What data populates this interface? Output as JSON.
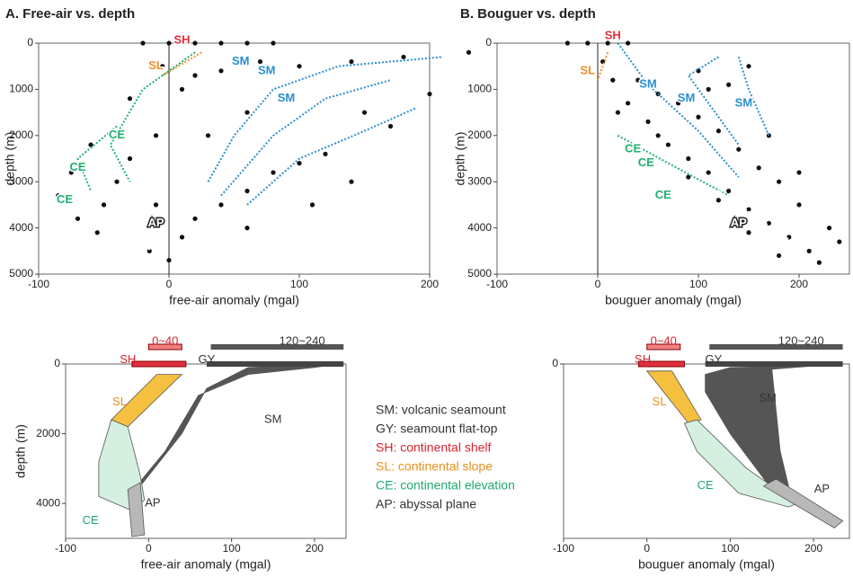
{
  "chart_data": [
    {
      "type": "scatter",
      "title": "A. Free-air vs. depth",
      "x_label": "free-air anomaly (mgal)",
      "y_label": "depth (m)",
      "xlim": [
        -100,
        200
      ],
      "ylim": [
        5000,
        0
      ],
      "xticks": [
        -100,
        0,
        100,
        200
      ],
      "yticks": [
        0,
        1000,
        2000,
        3000,
        4000,
        5000
      ],
      "color": "#111111",
      "x": [
        -20,
        0,
        20,
        40,
        60,
        80,
        -5,
        20,
        -30,
        10,
        40,
        70,
        100,
        140,
        180,
        230,
        -60,
        -75,
        -85,
        -70,
        -55,
        -40,
        -30,
        -10,
        -15,
        0,
        10,
        20,
        40,
        60,
        80,
        100,
        120,
        150,
        170,
        200,
        60,
        90,
        30,
        -10,
        110,
        140,
        60,
        -50
      ],
      "y": [
        0,
        0,
        0,
        0,
        0,
        0,
        500,
        700,
        1200,
        1000,
        600,
        400,
        500,
        400,
        300,
        200,
        2200,
        2800,
        3300,
        3800,
        4100,
        3000,
        2500,
        3500,
        4500,
        4700,
        4200,
        3800,
        3500,
        3200,
        2800,
        2600,
        2400,
        1500,
        1800,
        1100,
        1500,
        1200,
        2000,
        2000,
        3500,
        3000,
        4000,
        3500
      ],
      "annotations": [
        {
          "text": "SH",
          "color": "#e0303a"
        },
        {
          "text": "SL",
          "color": "#f0902a"
        },
        {
          "text": "SM",
          "color": "#2a8fd0"
        },
        {
          "text": "SM",
          "color": "#2a8fd0"
        },
        {
          "text": "SM",
          "color": "#2a8fd0"
        },
        {
          "text": "CE",
          "color": "#20b070"
        },
        {
          "text": "CE",
          "color": "#20b070"
        },
        {
          "text": "CE",
          "color": "#20b070"
        },
        {
          "text": "AP",
          "color": "#ffffff"
        }
      ]
    },
    {
      "type": "scatter",
      "title": "B. Bouguer vs. depth",
      "x_label": "bouguer anomaly (mgal)",
      "y_label": "depth (m)",
      "xlim": [
        -100,
        250
      ],
      "ylim": [
        5000,
        0
      ],
      "xticks": [
        -100,
        0,
        100,
        200
      ],
      "yticks": [
        0,
        1000,
        2000,
        3000,
        4000,
        5000
      ],
      "color": "#111111",
      "x": [
        -30,
        -10,
        10,
        30,
        5,
        15,
        30,
        50,
        70,
        90,
        110,
        130,
        150,
        170,
        190,
        210,
        220,
        40,
        60,
        80,
        100,
        120,
        140,
        160,
        180,
        200,
        230,
        240,
        100,
        130,
        150,
        60,
        90,
        120,
        150,
        180,
        110,
        170,
        200,
        20
      ],
      "y": [
        0,
        0,
        0,
        0,
        400,
        800,
        1300,
        1700,
        2200,
        2500,
        2800,
        3200,
        3600,
        3900,
        4200,
        4500,
        4750,
        800,
        1100,
        1300,
        1600,
        1900,
        2300,
        2700,
        3000,
        3500,
        4000,
        4300,
        600,
        900,
        500,
        2000,
        2900,
        3400,
        4100,
        4600,
        1000,
        2000,
        2800,
        1500
      ],
      "annotations": [
        {
          "text": "SH",
          "color": "#e0303a"
        },
        {
          "text": "SL",
          "color": "#f0902a"
        },
        {
          "text": "SM",
          "color": "#2a8fd0"
        },
        {
          "text": "SM",
          "color": "#2a8fd0"
        },
        {
          "text": "SM",
          "color": "#2a8fd0"
        },
        {
          "text": "CE",
          "color": "#20b070"
        },
        {
          "text": "CE",
          "color": "#20b070"
        },
        {
          "text": "CE",
          "color": "#20b070"
        },
        {
          "text": "AP",
          "color": "#ffffff"
        }
      ]
    },
    {
      "type": "schematic",
      "x_label": "free-air anomaly (mgal)",
      "y_label": "depth (m)",
      "xlim": [
        -100,
        238
      ],
      "ylim": [
        5000,
        0
      ],
      "xticks": [
        -100,
        0,
        100,
        200
      ],
      "yticks": [
        0,
        2000,
        4000
      ],
      "labels": [
        {
          "text": "0~40",
          "color": "#d9232e"
        },
        {
          "text": "120~240",
          "color": "#333333"
        },
        {
          "text": "SH",
          "color": "#d9232e"
        },
        {
          "text": "GY",
          "color": "#333333"
        },
        {
          "text": "SL",
          "color": "#e8901a"
        },
        {
          "text": "SM",
          "color": "#333333"
        },
        {
          "text": "CE",
          "color": "#1fa870"
        },
        {
          "text": "AP",
          "color": "#333333"
        }
      ]
    },
    {
      "type": "schematic",
      "x_label": "bouguer anomaly (mgal)",
      "xlim": [
        -100,
        243
      ],
      "ylim": [
        5000,
        0
      ],
      "xticks": [
        -100,
        0,
        100,
        200
      ],
      "yticks": [
        0
      ],
      "labels": [
        {
          "text": "0~40",
          "color": "#d9232e"
        },
        {
          "text": "120~240",
          "color": "#333333"
        },
        {
          "text": "SH",
          "color": "#d9232e"
        },
        {
          "text": "GY",
          "color": "#333333"
        },
        {
          "text": "SL",
          "color": "#e8901a"
        },
        {
          "text": "SM",
          "color": "#333333"
        },
        {
          "text": "CE",
          "color": "#1fa870"
        },
        {
          "text": "AP",
          "color": "#333333"
        }
      ]
    }
  ],
  "legend": [
    {
      "text": "SM: volcanic seamount",
      "color": "#333333"
    },
    {
      "text": "GY: seamount flat-top",
      "color": "#333333"
    },
    {
      "text": "SH: continental shelf",
      "color": "#d9232e"
    },
    {
      "text": "SL: continental slope",
      "color": "#e8901a"
    },
    {
      "text": "CE: continental elevation",
      "color": "#1fa870"
    },
    {
      "text": "AP: abyssal plane",
      "color": "#333333"
    }
  ]
}
